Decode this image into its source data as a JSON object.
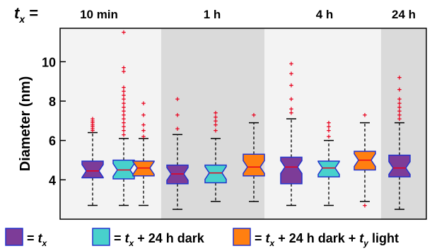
{
  "chart_data": {
    "type": "box",
    "ylabel": "Diameter (nm)",
    "ylim": [
      2.0,
      11.7
    ],
    "yticks": [
      4,
      6,
      8,
      10
    ],
    "tx_label": "t",
    "tx_sub": "x",
    "tx_suffix": " =",
    "groups": [
      {
        "label": "10 min",
        "shade": "#f3f3f3"
      },
      {
        "label": "1 h",
        "shade": "#dadada"
      },
      {
        "label": "4 h",
        "shade": "#f3f3f3"
      },
      {
        "label": "24 h",
        "shade": "#dadada"
      }
    ],
    "series": [
      {
        "key": "tx",
        "color": "#7d3c98"
      },
      {
        "key": "dark",
        "color": "#48d1cc"
      },
      {
        "key": "light",
        "color": "#ff7f10"
      }
    ],
    "boxes": [
      {
        "group": 0,
        "series": "tx",
        "whisker_low": 2.7,
        "q1": 4.1,
        "median": 4.45,
        "q3": 4.95,
        "whisker_high": 6.4,
        "outliers": [
          6.5,
          6.6,
          6.7,
          6.8,
          6.9,
          7.0,
          7.1
        ]
      },
      {
        "group": 0,
        "series": "dark",
        "whisker_low": 2.7,
        "q1": 4.05,
        "median": 4.5,
        "q3": 5.0,
        "whisker_high": 6.1,
        "outliers": [
          6.3,
          6.5,
          6.7,
          6.9,
          7.1,
          7.3,
          7.5,
          7.7,
          7.9,
          8.1,
          8.3,
          8.5,
          8.7,
          9.5,
          9.7,
          11.5
        ]
      },
      {
        "group": 0,
        "series": "light",
        "whisker_low": 2.7,
        "q1": 4.2,
        "median": 4.6,
        "q3": 4.95,
        "whisker_high": 6.1,
        "outliers": [
          6.2,
          6.5,
          6.8,
          7.3,
          7.9
        ]
      },
      {
        "group": 1,
        "series": "tx",
        "whisker_low": 2.5,
        "q1": 3.8,
        "median": 4.3,
        "q3": 4.75,
        "whisker_high": 6.3,
        "outliers": [
          6.6,
          7.3,
          8.1
        ]
      },
      {
        "group": 1,
        "series": "dark",
        "whisker_low": 2.9,
        "q1": 3.85,
        "median": 4.35,
        "q3": 4.75,
        "whisker_high": 6.1,
        "outliers": [
          6.5,
          6.8,
          7.0,
          7.2,
          7.4
        ]
      },
      {
        "group": 1,
        "series": "light",
        "whisker_low": 2.9,
        "q1": 4.2,
        "median": 4.65,
        "q3": 5.3,
        "whisker_high": 6.9,
        "outliers": [
          7.3
        ]
      },
      {
        "group": 2,
        "series": "tx",
        "whisker_low": 2.7,
        "q1": 3.8,
        "median": 4.65,
        "q3": 5.15,
        "whisker_high": 7.1,
        "outliers": [
          7.4,
          7.6,
          8.1,
          8.8,
          9.4,
          9.9
        ]
      },
      {
        "group": 2,
        "series": "dark",
        "whisker_low": 2.7,
        "q1": 4.15,
        "median": 4.6,
        "q3": 4.95,
        "whisker_high": 6.0,
        "outliers": [
          6.2,
          6.5,
          6.7,
          6.9
        ]
      },
      {
        "group": 2,
        "series": "light",
        "whisker_low": 2.9,
        "q1": 4.5,
        "median": 5.0,
        "q3": 5.45,
        "whisker_high": 6.9,
        "outliers": [
          2.7,
          7.3
        ]
      },
      {
        "group": 3,
        "series": "tx",
        "whisker_low": 2.5,
        "q1": 4.15,
        "median": 4.6,
        "q3": 5.25,
        "whisker_high": 6.9,
        "outliers": [
          7.1,
          7.3,
          7.5,
          7.7,
          7.9,
          8.1,
          8.6,
          9.2
        ]
      }
    ],
    "legend": [
      {
        "series": "tx",
        "text": "= ",
        "t": "t",
        "sub": "x",
        "rest": ""
      },
      {
        "series": "dark",
        "text": "= ",
        "t": "t",
        "sub": "x",
        "rest": " + 24 h dark"
      },
      {
        "series": "light",
        "text": "= ",
        "t": "t",
        "sub": "x",
        "rest": " + 24 h dark + ",
        "t2": "t",
        "sub2": "y",
        "rest2": " light"
      }
    ]
  }
}
